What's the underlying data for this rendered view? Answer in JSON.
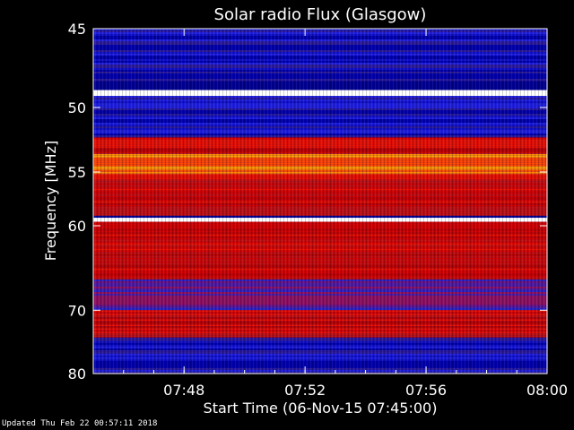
{
  "footer": {
    "updated": "Updated Thu Feb 22 00:57:11 2018"
  },
  "chart_data": {
    "type": "heatmap",
    "title": "Solar radio Flux (Glasgow)",
    "xlabel": "Start Time (06-Nov-15 07:45:00)",
    "ylabel": "Frequency [MHz]",
    "xlim": [
      "07:45",
      "08:00"
    ],
    "ylim": [
      45,
      80
    ],
    "x_ticks": [
      "07:48",
      "07:52",
      "07:56",
      "08:00"
    ],
    "y_ticks": [
      45,
      50,
      55,
      60,
      70,
      80
    ],
    "y_scale": "reciprocal",
    "colormap": [
      "#000060",
      "#0000ff",
      "#ff0000",
      "#ffff00",
      "#ffffff"
    ],
    "frequency_bands": [
      {
        "from": 45,
        "to": 48.2,
        "level": "low"
      },
      {
        "from": 48.8,
        "to": 49.2,
        "level": "saturated"
      },
      {
        "from": 49.2,
        "to": 52.2,
        "level": "low"
      },
      {
        "from": 52.2,
        "to": 53.5,
        "level": "high"
      },
      {
        "from": 53.5,
        "to": 55.2,
        "level": "very-high"
      },
      {
        "from": 55.2,
        "to": 59,
        "level": "high"
      },
      {
        "from": 59.2,
        "to": 59.6,
        "level": "saturated"
      },
      {
        "from": 59.6,
        "to": 66,
        "level": "high"
      },
      {
        "from": 66,
        "to": 70,
        "level": "mixed"
      },
      {
        "from": 70,
        "to": 74,
        "level": "high"
      },
      {
        "from": 74,
        "to": 80,
        "level": "low"
      }
    ]
  }
}
